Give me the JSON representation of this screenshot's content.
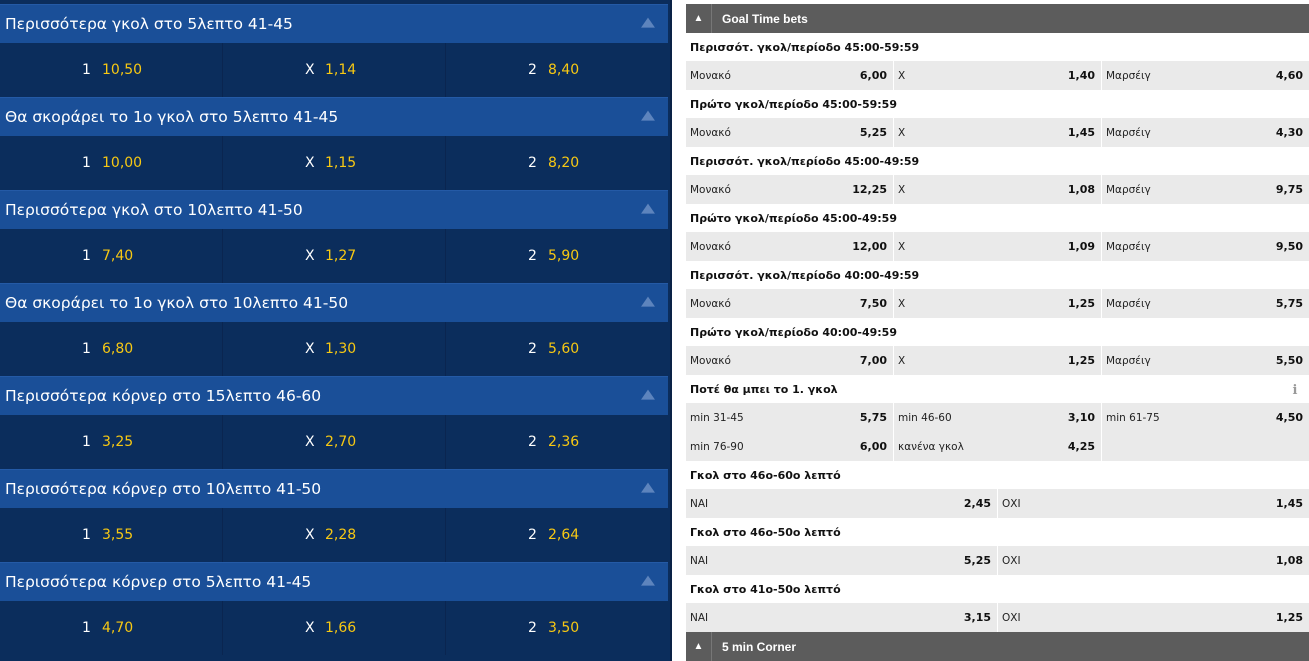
{
  "left_markets": [
    {
      "title": "Περισσότερα γκολ στο 5λεπτο 41-45",
      "odds": [
        {
          "label": "1",
          "value": "10,50"
        },
        {
          "label": "X",
          "value": "1,14"
        },
        {
          "label": "2",
          "value": "8,40"
        }
      ]
    },
    {
      "title": "Θα σκοράρει το 1ο γκολ στο 5λεπτο 41-45",
      "odds": [
        {
          "label": "1",
          "value": "10,00"
        },
        {
          "label": "X",
          "value": "1,15"
        },
        {
          "label": "2",
          "value": "8,20"
        }
      ]
    },
    {
      "title": "Περισσότερα γκολ στο 10λεπτο 41-50",
      "odds": [
        {
          "label": "1",
          "value": "7,40"
        },
        {
          "label": "X",
          "value": "1,27"
        },
        {
          "label": "2",
          "value": "5,90"
        }
      ]
    },
    {
      "title": "Θα σκοράρει το 1ο γκολ στο 10λεπτο 41-50",
      "odds": [
        {
          "label": "1",
          "value": "6,80"
        },
        {
          "label": "X",
          "value": "1,30"
        },
        {
          "label": "2",
          "value": "5,60"
        }
      ]
    },
    {
      "title": "Περισσότερα κόρνερ στο 15λεπτο 46-60",
      "odds": [
        {
          "label": "1",
          "value": "3,25"
        },
        {
          "label": "X",
          "value": "2,70"
        },
        {
          "label": "2",
          "value": "2,36"
        }
      ]
    },
    {
      "title": "Περισσότερα κόρνερ στο 10λεπτο 41-50",
      "odds": [
        {
          "label": "1",
          "value": "3,55"
        },
        {
          "label": "X",
          "value": "2,28"
        },
        {
          "label": "2",
          "value": "2,64"
        }
      ]
    },
    {
      "title": "Περισσότερα κόρνερ στο 5λεπτο 41-45",
      "odds": [
        {
          "label": "1",
          "value": "4,70"
        },
        {
          "label": "X",
          "value": "1,66"
        },
        {
          "label": "2",
          "value": "3,50"
        }
      ]
    }
  ],
  "right": {
    "section_title": "Goal Time bets",
    "footer_section_title": "5 min Corner",
    "markets3": [
      {
        "title": "Περισσότ. γκολ/περίοδο 45:00-59:59",
        "odds": [
          {
            "label": "Μονακό",
            "value": "6,00"
          },
          {
            "label": "X",
            "value": "1,40"
          },
          {
            "label": "Μαρσέιγ",
            "value": "4,60"
          }
        ]
      },
      {
        "title": "Πρώτο γκολ/περίοδο 45:00-59:59",
        "odds": [
          {
            "label": "Μονακό",
            "value": "5,25"
          },
          {
            "label": "X",
            "value": "1,45"
          },
          {
            "label": "Μαρσέιγ",
            "value": "4,30"
          }
        ]
      },
      {
        "title": "Περισσότ. γκολ/περίοδο 45:00-49:59",
        "odds": [
          {
            "label": "Μονακό",
            "value": "12,25"
          },
          {
            "label": "X",
            "value": "1,08"
          },
          {
            "label": "Μαρσέιγ",
            "value": "9,75"
          }
        ]
      },
      {
        "title": "Πρώτο γκολ/περίοδο 45:00-49:59",
        "odds": [
          {
            "label": "Μονακό",
            "value": "12,00"
          },
          {
            "label": "X",
            "value": "1,09"
          },
          {
            "label": "Μαρσέιγ",
            "value": "9,50"
          }
        ]
      },
      {
        "title": "Περισσότ. γκολ/περίοδο 40:00-49:59",
        "odds": [
          {
            "label": "Μονακό",
            "value": "7,50"
          },
          {
            "label": "X",
            "value": "1,25"
          },
          {
            "label": "Μαρσέιγ",
            "value": "5,75"
          }
        ]
      },
      {
        "title": "Πρώτο γκολ/περίοδο 40:00-49:59",
        "odds": [
          {
            "label": "Μονακό",
            "value": "7,00"
          },
          {
            "label": "X",
            "value": "1,25"
          },
          {
            "label": "Μαρσέιγ",
            "value": "5,50"
          }
        ]
      }
    ],
    "first_goal": {
      "title": "Ποτέ θα μπει το 1. γκολ",
      "info_icon": "info-icon",
      "row1": [
        {
          "label": "min 31-45",
          "value": "5,75"
        },
        {
          "label": "min 46-60",
          "value": "3,10"
        },
        {
          "label": "min 61-75",
          "value": "4,50"
        }
      ],
      "row2": [
        {
          "label": "min 76-90",
          "value": "6,00"
        },
        {
          "label": "κανένα γκολ",
          "value": "4,25"
        }
      ]
    },
    "markets2": [
      {
        "title": "Γκολ στο 46ο-60ο λεπτό",
        "odds": [
          {
            "label": "ΝΑΙ",
            "value": "2,45"
          },
          {
            "label": "ΟΧΙ",
            "value": "1,45"
          }
        ]
      },
      {
        "title": "Γκολ στο 46ο-50ο λεπτό",
        "odds": [
          {
            "label": "ΝΑΙ",
            "value": "5,25"
          },
          {
            "label": "ΟΧΙ",
            "value": "1,08"
          }
        ]
      },
      {
        "title": "Γκολ στο 41ο-50ο λεπτό",
        "odds": [
          {
            "label": "ΝΑΙ",
            "value": "3,15"
          },
          {
            "label": "ΟΧΙ",
            "value": "1,25"
          }
        ]
      }
    ]
  }
}
